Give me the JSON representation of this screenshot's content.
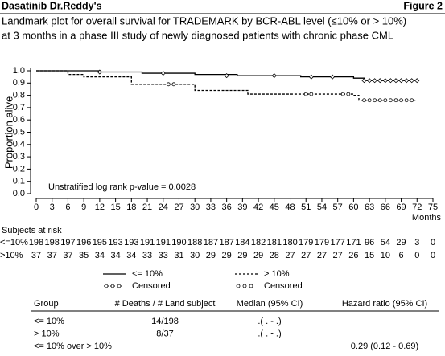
{
  "header": {
    "left": "Dasatinib Dr.Reddy's",
    "right": "Figure 2",
    "title_lines": [
      "Landmark plot for overall survival for TRADEMARK by BCR-ABL level (≤10% or > 10%)",
      "at 3 months in a phase III study of newly diagnosed patients with chronic phase CML"
    ]
  },
  "chart_data": {
    "type": "step",
    "ylabel": "Proportion alive",
    "xlabel": "Months",
    "annotation": "Unstratified log rank p-value = 0.0028",
    "xlim": [
      0,
      75
    ],
    "xticks": [
      0,
      3,
      6,
      9,
      12,
      15,
      18,
      21,
      24,
      27,
      30,
      33,
      36,
      39,
      42,
      45,
      48,
      51,
      54,
      57,
      60,
      63,
      66,
      69,
      72,
      75
    ],
    "ylim": [
      0,
      1
    ],
    "yticks": [
      {
        "value": 0,
        "label": "0.0"
      },
      0.1,
      0.2,
      0.3,
      0.4,
      0.5,
      0.6,
      0.7,
      0.8,
      0.9,
      {
        "value": 1,
        "label": "1.0"
      }
    ],
    "series": [
      {
        "name": "<= 10%",
        "style": "solid",
        "color": "#000000",
        "x": [
          0,
          12,
          12,
          20,
          20,
          30,
          30,
          38,
          38,
          50,
          50,
          60,
          60,
          62,
          62,
          72
        ],
        "values": [
          1,
          1,
          0.99,
          0.99,
          0.98,
          0.98,
          0.97,
          0.97,
          0.96,
          0.96,
          0.95,
          0.95,
          0.94,
          0.94,
          0.92,
          0.92
        ]
      },
      {
        "name": "> 10%",
        "style": "dashed",
        "color": "#000000",
        "x": [
          0,
          6,
          6,
          9,
          9,
          18,
          18,
          30,
          30,
          40,
          40,
          60,
          60,
          61,
          61,
          72
        ],
        "values": [
          1,
          1,
          0.97,
          0.97,
          0.95,
          0.95,
          0.89,
          0.89,
          0.84,
          0.84,
          0.81,
          0.81,
          0.8,
          0.8,
          0.76,
          0.76
        ]
      },
      {
        "name": "Censored",
        "style": "diamond",
        "color": "#000000",
        "x": [
          12,
          24,
          36,
          45,
          52,
          56,
          62,
          63,
          64,
          65,
          66,
          67,
          68,
          69,
          70,
          71,
          72
        ],
        "values": [
          0.99,
          0.98,
          0.96,
          0.96,
          0.95,
          0.95,
          0.92,
          0.92,
          0.92,
          0.92,
          0.92,
          0.92,
          0.92,
          0.92,
          0.92,
          0.92,
          0.92
        ]
      },
      {
        "name": "Censored",
        "style": "circle",
        "color": "#000000",
        "x": [
          25,
          26,
          51,
          52,
          58,
          59,
          62,
          63,
          64,
          65,
          66,
          67,
          68,
          69,
          70,
          71
        ],
        "values": [
          0.89,
          0.89,
          0.81,
          0.81,
          0.81,
          0.81,
          0.76,
          0.76,
          0.76,
          0.76,
          0.76,
          0.76,
          0.76,
          0.76,
          0.76,
          0.76
        ]
      }
    ],
    "risk_table": {
      "title": "Subjects at risk",
      "rows": [
        {
          "label": "<=10%",
          "values": [
            198,
            198,
            197,
            196,
            195,
            193,
            193,
            191,
            191,
            190,
            188,
            187,
            187,
            184,
            182,
            181,
            180,
            179,
            179,
            177,
            171,
            96,
            54,
            29,
            3,
            0
          ]
        },
        {
          "label": ">10%",
          "values": [
            37,
            37,
            37,
            35,
            34,
            34,
            34,
            33,
            33,
            31,
            30,
            29,
            29,
            29,
            29,
            28,
            27,
            27,
            27,
            27,
            26,
            15,
            10,
            6,
            0,
            0
          ]
        }
      ]
    }
  },
  "table": {
    "headers": [
      "Group",
      "# Deaths / # Land subject",
      "Median (95% CI)",
      "Hazard ratio (95% CI)"
    ],
    "rows": [
      [
        "<= 10%",
        "14/198",
        ".( . - .)",
        ""
      ],
      [
        "> 10%",
        "8/37",
        ".( . - .)",
        ""
      ],
      [
        "<= 10% over > 10%",
        "",
        "",
        "0.29 (0.12 - 0.69)"
      ]
    ]
  }
}
